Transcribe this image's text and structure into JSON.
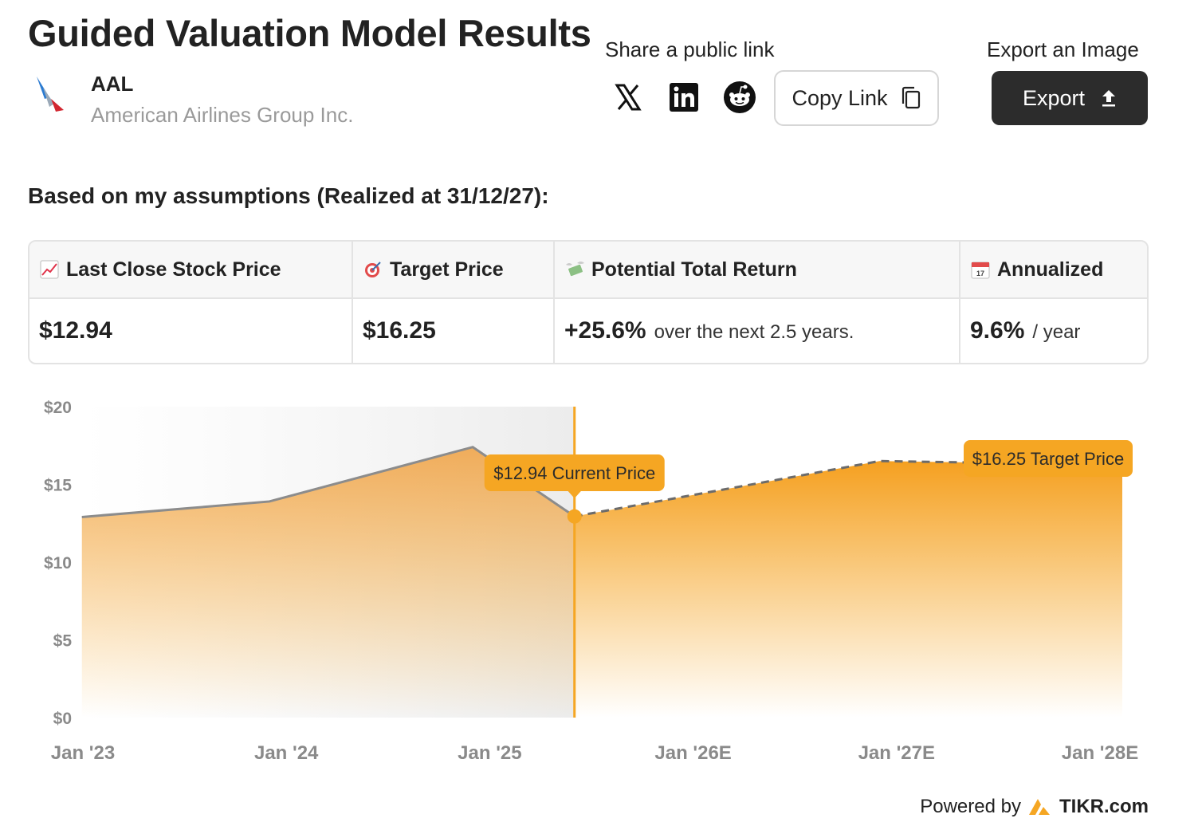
{
  "header": {
    "title": "Guided Valuation Model Results",
    "ticker": "AAL",
    "company_name": "American Airlines Group Inc."
  },
  "share": {
    "label": "Share a public link",
    "icons": [
      "x-twitter-icon",
      "linkedin-icon",
      "reddit-icon"
    ],
    "copy_link_label": "Copy Link"
  },
  "export": {
    "label": "Export an Image",
    "button_label": "Export"
  },
  "assumptions_heading": "Based on my assumptions (Realized at 31/12/27):",
  "metrics": [
    {
      "icon": "chart-increasing-icon",
      "header": "Last Close Stock Price",
      "value": "$12.94",
      "sub": ""
    },
    {
      "icon": "target-icon",
      "header": "Target Price",
      "value": "$16.25",
      "sub": ""
    },
    {
      "icon": "money-wings-icon",
      "header": "Potential Total Return",
      "value": "+25.6%",
      "sub": "over the next 2.5 years."
    },
    {
      "icon": "calendar-icon",
      "header": "Annualized",
      "value": "9.6%",
      "sub": "/ year"
    }
  ],
  "chart_data": {
    "type": "area",
    "y_ticks": [
      "$20",
      "$15",
      "$10",
      "$5",
      "$0"
    ],
    "x_ticks": [
      "Jan '23",
      "Jan '24",
      "Jan '25",
      "Jan '26E",
      "Jan '27E",
      "Jan '28E"
    ],
    "ylim": [
      0,
      20
    ],
    "historical": [
      {
        "x": "2022-12",
        "y": 12.9
      },
      {
        "x": "2023-12",
        "y": 13.9
      },
      {
        "x": "2024-12",
        "y": 17.4
      },
      {
        "x": "2025-06",
        "y": 12.94
      }
    ],
    "projected": [
      {
        "x": "2025-06",
        "y": 12.94
      },
      {
        "x": "2026-06",
        "y": 15.3
      },
      {
        "x": "2026-12",
        "y": 16.5
      },
      {
        "x": "2027-12",
        "y": 16.25
      }
    ],
    "current_label": "$12.94 Current Price",
    "target_label": "$16.25 Target Price",
    "accent_color": "#f5a623",
    "historical_line_color": "#8c8c8c"
  },
  "footer": {
    "powered_by": "Powered by",
    "brand": "TIKR.com"
  }
}
